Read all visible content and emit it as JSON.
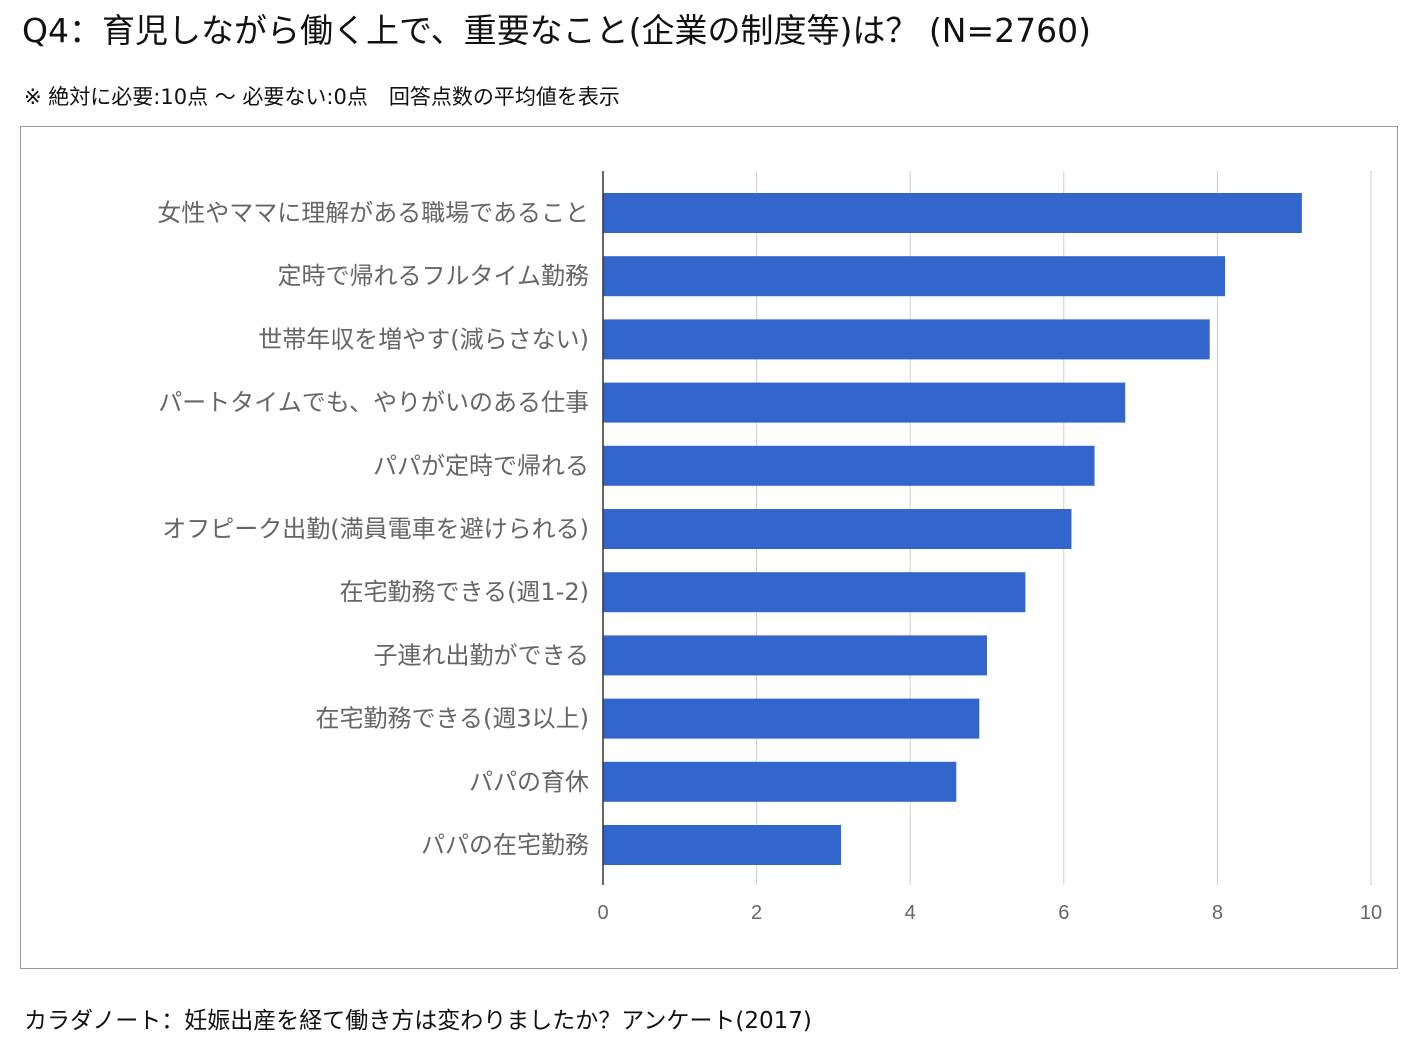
{
  "page": {
    "title": "Q4：育児しながら働く上で、重要なこと(企業の制度等)は？ (N=2760)",
    "subtitle": "※ 絶対に必要:10点 〜 必要ない:0点　回答点数の平均値を表示",
    "footer": "カラダノート：妊娠出産を経て働き方は変わりましたか？アンケート(2017)"
  },
  "chart_data": {
    "type": "bar",
    "orientation": "horizontal",
    "title": "",
    "xlabel": "",
    "ylabel": "",
    "categories": [
      "女性やママに理解がある職場であること",
      "定時で帰れるフルタイム勤務",
      "世帯年収を増やす(減らさない)",
      "パートタイムでも、やりがいのある仕事",
      "パパが定時で帰れる",
      "オフピーク出勤(満員電車を避けられる)",
      "在宅勤務できる(週1-2)",
      "子連れ出勤ができる",
      "在宅勤務できる(週3以上)",
      "パパの育休",
      "パパの在宅勤務"
    ],
    "values": [
      9.1,
      8.1,
      7.9,
      6.8,
      6.4,
      6.1,
      5.5,
      5.0,
      4.9,
      4.6,
      3.1
    ],
    "xlim": [
      0,
      10
    ],
    "ticks": [
      0,
      2,
      4,
      6,
      8,
      10
    ],
    "tick_labels": [
      "0",
      "2",
      "4",
      "6",
      "8",
      "10"
    ],
    "grid": true,
    "legend": "none",
    "bar_color": "#3366cc",
    "grid_color": "#cccccc",
    "label_color": "#666666"
  }
}
